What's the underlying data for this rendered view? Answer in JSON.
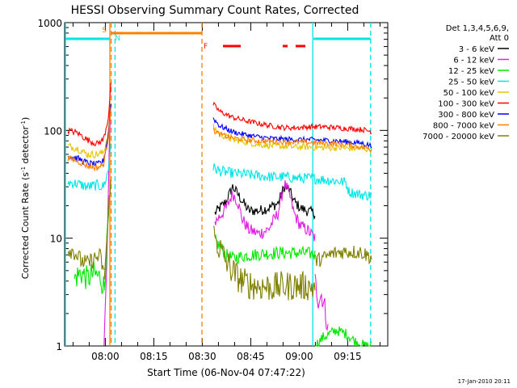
{
  "chart_data": {
    "type": "line",
    "title": "HESSI Observing Summary Count Rates, Corrected",
    "xlabel": "Start Time (06-Nov-04 07:47:22)",
    "ylabel_main": "Corrected Count Rate (s",
    "ylabel_sup1": "-1",
    "ylabel_mid": " detector",
    "ylabel_sup2": "-1",
    "ylabel_end": ")",
    "yscale": "log",
    "ylim": [
      1,
      1000
    ],
    "xlim_min": [
      0,
      100
    ],
    "yticks": [
      {
        "value": 1,
        "label": "1"
      },
      {
        "value": 10,
        "label": "10"
      },
      {
        "value": 100,
        "label": "100"
      },
      {
        "value": 1000,
        "label": "1000"
      }
    ],
    "xticks": [
      {
        "value": 12.6,
        "label": "08:00"
      },
      {
        "value": 27.6,
        "label": "08:15"
      },
      {
        "value": 42.6,
        "label": "08:30"
      },
      {
        "value": 57.6,
        "label": "08:45"
      },
      {
        "value": 72.6,
        "label": "09:00"
      },
      {
        "value": 87.6,
        "label": "09:15"
      }
    ],
    "legend_header": [
      "Det 1,3,4,5,6,9,",
      "Att 0"
    ],
    "legend_position": "top-right outside",
    "footer": "17-Jan-2010 20:11",
    "markers": [
      {
        "label": "S",
        "color": "#ff7f00",
        "x": 14.0
      },
      {
        "label": "N",
        "color": "#00e5e5",
        "x": 14.6
      },
      {
        "label": "F",
        "color": "#ff0000",
        "x": 45.3
      }
    ],
    "bars": [
      {
        "color": "#00e5e5",
        "start": 0,
        "end": 14.0
      },
      {
        "color": "#ff7f00",
        "start": 14.0,
        "end": 42.5
      },
      {
        "color": "#00e5e5",
        "start": 76.8,
        "end": 94.7
      }
    ],
    "flare_segments": [
      [
        49.0,
        54.5
      ],
      [
        67.5,
        69.0
      ],
      [
        71.5,
        74.5
      ]
    ],
    "vlines": [
      {
        "x": 0,
        "color": "#00e5e5",
        "style": "solid"
      },
      {
        "x": 14.0,
        "color": "#ff7f00",
        "style": "solid"
      },
      {
        "x": 14.4,
        "color": "#ff7f00",
        "style": "dashed"
      },
      {
        "x": 15.6,
        "color": "#00e5e5",
        "style": "dashed"
      },
      {
        "x": 42.5,
        "color": "#ff7f00",
        "style": "dashed"
      },
      {
        "x": 76.8,
        "color": "#00e5e5",
        "style": "solid"
      },
      {
        "x": 94.7,
        "color": "#00e5e5",
        "style": "dashed"
      }
    ],
    "series": [
      {
        "name": "3 - 6 keV",
        "color": "#000000",
        "segments": [
          {
            "x": [
              46.5,
              48,
              50,
              52,
              53.5,
              55,
              57,
              60,
              63,
              66,
              68,
              69.5,
              71,
              73,
              75,
              77.5
            ],
            "y": [
              17,
              19,
              22,
              30,
              26,
              22,
              18,
              18,
              19,
              21,
              30,
              28,
              22,
              19,
              18,
              17
            ],
            "noise": 0.05
          }
        ]
      },
      {
        "name": "6 - 12 keV",
        "color": "#e020e0",
        "segments": [
          {
            "x": [
              12.2,
              13,
              13.8,
              14.3
            ],
            "y": [
              1.0,
              5,
              60,
              200
            ],
            "noise": 0.08
          },
          {
            "x": [
              46.5,
              48,
              50,
              52,
              53.5,
              55,
              57,
              60,
              63,
              66,
              68,
              69.5,
              71,
              73,
              75,
              77.5
            ],
            "y": [
              14,
              16,
              19,
              26,
              22,
              15,
              12,
              11,
              12,
              17,
              32,
              26,
              17,
              13,
              12,
              10
            ],
            "noise": 0.06
          },
          {
            "x": [
              77.5,
              78.5,
              79.5,
              80.5,
              81.5
            ],
            "y": [
              4,
              2.7,
              3,
              2.3,
              1.4
            ],
            "noise": 0.1
          }
        ]
      },
      {
        "name": "12 - 25 keV",
        "color": "#00e800",
        "segments": [
          {
            "x": [
              3,
              5,
              7,
              9,
              11,
              12.3
            ],
            "y": [
              4.2,
              4.8,
              4.2,
              4.7,
              4.3,
              3.5
            ],
            "noise": 0.12
          },
          {
            "x": [
              12.3,
              13.3,
              14.3
            ],
            "y": [
              3.5,
              12,
              30
            ],
            "noise": 0.08
          },
          {
            "x": [
              46.5,
              48,
              50,
              52,
              55,
              58,
              62,
              66,
              70,
              74,
              76,
              77.5
            ],
            "y": [
              9.5,
              8.5,
              7,
              6.5,
              6.8,
              7,
              7.2,
              7.3,
              7.3,
              7.3,
              7.2,
              7
            ],
            "noise": 0.06
          },
          {
            "x": [
              77.5,
              80,
              84,
              87,
              90,
              93,
              95
            ],
            "y": [
              1.0,
              1.2,
              1.4,
              1.3,
              1.1,
              1.0,
              1.0
            ],
            "noise": 0.05
          }
        ]
      },
      {
        "name": "25 - 50 keV",
        "color": "#00e5e5",
        "segments": [
          {
            "x": [
              1,
              4,
              7,
              10,
              12,
              13.5,
              14.3
            ],
            "y": [
              33,
              32,
              30,
              31,
              30,
              42,
              80
            ],
            "noise": 0.05
          },
          {
            "x": [
              46,
              48,
              52,
              56,
              60,
              64,
              68,
              72,
              76,
              80,
              84,
              87,
              88,
              90,
              93,
              95
            ],
            "y": [
              45,
              42,
              40,
              39,
              38,
              37,
              37,
              36,
              36,
              35,
              34,
              33,
              27,
              26,
              25,
              25
            ],
            "noise": 0.05
          }
        ]
      },
      {
        "name": "50 - 100 keV",
        "color": "#e5c400",
        "segments": [
          {
            "x": [
              1,
              4,
              7,
              10,
              12,
              13.5,
              14.3
            ],
            "y": [
              72,
              68,
              60,
              60,
              62,
              95,
              160
            ],
            "noise": 0.035
          },
          {
            "x": [
              46,
              48,
              52,
              56,
              60,
              64,
              68,
              72,
              76,
              80,
              84,
              88,
              92,
              95
            ],
            "y": [
              108,
              92,
              82,
              78,
              74,
              72,
              71,
              70,
              70,
              69,
              69,
              68,
              68,
              66
            ],
            "noise": 0.03
          }
        ]
      },
      {
        "name": "100 - 300 keV",
        "color": "#ff0000",
        "segments": [
          {
            "x": [
              1,
              4,
              7,
              10,
              12,
              13.5,
              14.3
            ],
            "y": [
              100,
              95,
              82,
              75,
              82,
              130,
              260
            ],
            "noise": 0.03
          },
          {
            "x": [
              46,
              48,
              52,
              56,
              60,
              64,
              68,
              72,
              76,
              80,
              84,
              88,
              92,
              95
            ],
            "y": [
              175,
              150,
              132,
              123,
              116,
              110,
              106,
              106,
              108,
              108,
              106,
              104,
              102,
              98
            ],
            "noise": 0.025
          }
        ]
      },
      {
        "name": "300 - 800 keV",
        "color": "#0000ff",
        "segments": [
          {
            "x": [
              1,
              4,
              7,
              10,
              12,
              13.5,
              14.3
            ],
            "y": [
              58,
              55,
              50,
              48,
              52,
              90,
              180
            ],
            "noise": 0.03
          },
          {
            "x": [
              46,
              48,
              52,
              56,
              60,
              64,
              68,
              72,
              76,
              80,
              84,
              88,
              92,
              95
            ],
            "y": [
              130,
              110,
              97,
              91,
              87,
              84,
              83,
              82,
              82,
              81,
              80,
              78,
              76,
              72
            ],
            "noise": 0.025
          }
        ]
      },
      {
        "name": "800 - 7000 keV",
        "color": "#ff7f00",
        "segments": [
          {
            "x": [
              1,
              4,
              7,
              10,
              12,
              13.5,
              14.3
            ],
            "y": [
              55,
              52,
              47,
              45,
              48,
              85,
              170
            ],
            "noise": 0.03
          },
          {
            "x": [
              46,
              48,
              52,
              56,
              60,
              64,
              68,
              72,
              76,
              80,
              84,
              88,
              92,
              95
            ],
            "y": [
              100,
              92,
              85,
              82,
              80,
              79,
              78,
              78,
              77,
              76,
              75,
              73,
              70,
              67
            ],
            "noise": 0.025
          }
        ]
      },
      {
        "name": "7000 - 20000 keV",
        "color": "#808000",
        "segments": [
          {
            "x": [
              1,
              3,
              5,
              7,
              9,
              11,
              12.3
            ],
            "y": [
              8,
              7.5,
              6.2,
              5.8,
              6.4,
              6.8,
              4.5
            ],
            "noise": 0.08
          },
          {
            "x": [
              12.3,
              13.3,
              14.3
            ],
            "y": [
              4.5,
              12,
              40
            ],
            "noise": 0.08
          },
          {
            "x": [
              46,
              48,
              50,
              53,
              56,
              60,
              64,
              68,
              72,
              75,
              77.5
            ],
            "y": [
              11,
              8,
              6,
              4.5,
              3.8,
              3.6,
              3.5,
              3.6,
              3.6,
              3.6,
              3.5
            ],
            "noise": 0.14
          },
          {
            "x": [
              77.5,
              80,
              83,
              86,
              89,
              92,
              95
            ],
            "y": [
              6.2,
              6.5,
              7.2,
              7.5,
              7.5,
              7.4,
              6.6
            ],
            "noise": 0.07
          }
        ]
      }
    ]
  }
}
